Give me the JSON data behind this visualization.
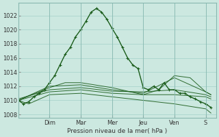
{
  "xlabel": "Pression niveau de la mer( hPa )",
  "bg_color": "#cce8e0",
  "grid_color": "#aad4cc",
  "line_color": "#1a5c1a",
  "ylim": [
    1007.5,
    1023.8
  ],
  "yticks": [
    1008,
    1010,
    1012,
    1014,
    1016,
    1018,
    1020,
    1022
  ],
  "day_labels": [
    "Dim",
    "Mar",
    "Mer",
    "Jeu",
    "Ven",
    "S"
  ],
  "day_positions": [
    24,
    48,
    72,
    96,
    120,
    144
  ],
  "xlim": [
    0,
    152
  ],
  "main_x": [
    0,
    4,
    8,
    12,
    16,
    20,
    24,
    28,
    32,
    36,
    40,
    44,
    48,
    52,
    56,
    60,
    64,
    68,
    72,
    76,
    80,
    84,
    88,
    92,
    96,
    100,
    104,
    108,
    112,
    116,
    120,
    124,
    128,
    132,
    136,
    140,
    144,
    148
  ],
  "main_y": [
    1010.0,
    1009.5,
    1009.8,
    1010.5,
    1011.0,
    1011.5,
    1012.5,
    1013.5,
    1015.0,
    1016.5,
    1017.5,
    1019.0,
    1020.0,
    1021.2,
    1022.5,
    1023.0,
    1022.5,
    1021.5,
    1020.2,
    1019.0,
    1017.5,
    1016.0,
    1015.0,
    1014.5,
    1011.8,
    1011.5,
    1012.0,
    1011.5,
    1012.5,
    1011.5,
    1011.5,
    1011.0,
    1011.0,
    1010.5,
    1010.2,
    1009.8,
    1009.5,
    1009.0
  ],
  "ens_lines": [
    {
      "x": [
        0,
        24,
        48,
        72,
        96,
        120,
        144,
        148
      ],
      "y": [
        1010.0,
        1011.2,
        1011.5,
        1011.0,
        1010.8,
        1010.8,
        1010.5,
        1010.2
      ]
    },
    {
      "x": [
        0,
        24,
        48,
        72,
        96,
        120,
        144,
        148
      ],
      "y": [
        1010.2,
        1011.5,
        1011.8,
        1011.3,
        1011.2,
        1011.5,
        1010.8,
        1010.5
      ]
    },
    {
      "x": [
        0,
        24,
        48,
        72,
        96,
        120,
        144,
        148
      ],
      "y": [
        1010.0,
        1012.0,
        1012.2,
        1011.5,
        1011.0,
        1013.2,
        1011.2,
        1010.8
      ]
    },
    {
      "x": [
        0,
        24,
        36,
        48,
        72,
        96,
        108,
        120,
        132,
        144,
        148
      ],
      "y": [
        1010.0,
        1011.8,
        1012.5,
        1012.5,
        1011.8,
        1010.8,
        1011.5,
        1013.5,
        1013.2,
        1011.2,
        1010.8
      ]
    },
    {
      "x": [
        0,
        8,
        24,
        48,
        72,
        96,
        120,
        144,
        148
      ],
      "y": [
        1010.0,
        1009.5,
        1010.8,
        1011.0,
        1010.5,
        1010.0,
        1009.5,
        1008.8,
        1008.2
      ]
    }
  ]
}
